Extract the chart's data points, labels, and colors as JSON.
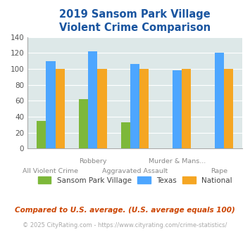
{
  "title": "2019 Sansom Park Village\nViolent Crime Comparison",
  "categories": [
    "All Violent Crime",
    "Robbery",
    "Aggravated Assault",
    "Murder & Mans...",
    "Rape"
  ],
  "row1_labels": [
    "",
    "Robbery",
    "",
    "Murder & Mans...",
    ""
  ],
  "row2_labels": [
    "All Violent Crime",
    "",
    "Aggravated Assault",
    "",
    "Rape"
  ],
  "series": {
    "Sansom Park Village": [
      35,
      62,
      33,
      0,
      0
    ],
    "Texas": [
      110,
      122,
      106,
      98,
      120
    ],
    "National": [
      100,
      100,
      100,
      100,
      100
    ]
  },
  "colors": {
    "Sansom Park Village": "#7db83a",
    "Texas": "#4da6ff",
    "National": "#f5a623"
  },
  "ylim": [
    0,
    140
  ],
  "yticks": [
    0,
    20,
    40,
    60,
    80,
    100,
    120,
    140
  ],
  "title_color": "#1a55a0",
  "title_fontsize": 10.5,
  "bg_color": "#dde8e8",
  "footnote1": "Compared to U.S. average. (U.S. average equals 100)",
  "footnote2": "© 2025 CityRating.com - https://www.cityrating.com/crime-statistics/",
  "footnote1_color": "#cc4400",
  "footnote2_color": "#aaaaaa",
  "tick_label_color": "#888888",
  "bar_width": 0.22
}
